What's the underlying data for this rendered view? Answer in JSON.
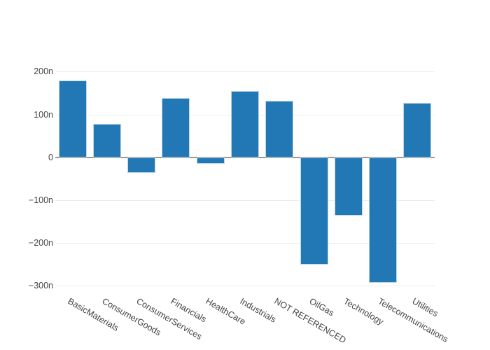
{
  "page": {
    "background_color": "#ffffff",
    "title": ""
  },
  "chart_data": {
    "type": "bar",
    "title": "",
    "xlabel": "",
    "ylabel": "",
    "categories": [
      "BasicMaterials",
      "ConsumerGoods",
      "ConsumerServices",
      "Financials",
      "HealthCare",
      "Industrials",
      "NOT REFERENCED",
      "OilGas",
      "Technology",
      "Telecommunications",
      "Utilities"
    ],
    "values": [
      179,
      78,
      -37,
      139,
      -15,
      155,
      132,
      -251,
      -136,
      -293,
      127
    ],
    "value_unit_suffix": "n",
    "yticks": [
      {
        "label": "200n",
        "value": 200
      },
      {
        "label": "100n",
        "value": 100
      },
      {
        "label": "0",
        "value": 0
      },
      {
        "label": "−100n",
        "value": -100
      },
      {
        "label": "−200n",
        "value": -200
      },
      {
        "label": "−300n",
        "value": -300
      }
    ],
    "ylim": [
      -310,
      200
    ],
    "grid": true,
    "legend": false,
    "colors": {
      "bar_fill": "#2277b5",
      "bar_border": "#bed6e8",
      "gridline": "#ececec",
      "zero_line": "#979797",
      "tick_label": "#444444",
      "background": "#ffffff"
    }
  }
}
